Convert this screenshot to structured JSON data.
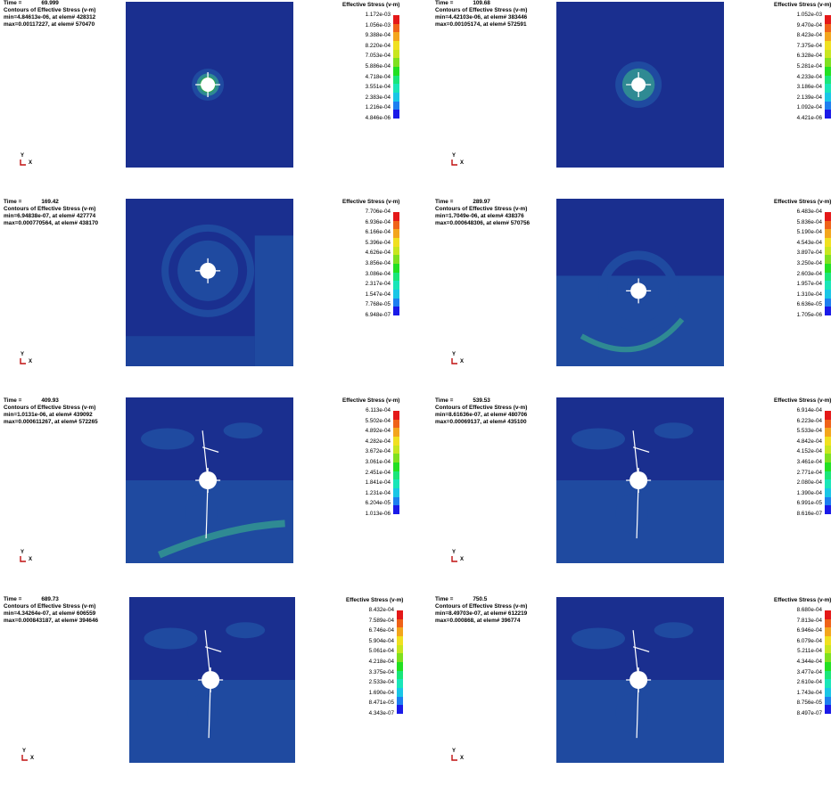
{
  "labels": {
    "time": "Time =",
    "contours": "Contours of Effective Stress (v-m)",
    "legend_title": "Effective Stress (v-m)",
    "axis_y": "Y",
    "axis_x": "X"
  },
  "colors": {
    "background": "#1a2f8f",
    "band_light": "#1f4aa0",
    "band_teal": "#2f8a93",
    "band_cyan": "#45b8c0",
    "hole": "#ffffff",
    "scale": [
      "#1a1ae8",
      "#1d7ff0",
      "#19c6e6",
      "#19e6b8",
      "#19e67a",
      "#22e022",
      "#7fe01f",
      "#c8e61f",
      "#f0e020",
      "#f3a51c",
      "#ef6218",
      "#e41818"
    ]
  },
  "panels": [
    {
      "time": "69.999",
      "min": "min=4.84613e-06, at elem# 428312",
      "max": "max=0.00117227, at elem# 570470",
      "legend": [
        "1.172e-03",
        "1.056e-03",
        "9.388e-04",
        "8.220e-04",
        "7.053e-04",
        "5.886e-04",
        "4.718e-04",
        "3.551e-04",
        "2.383e-04",
        "1.216e-04",
        "4.846e-06"
      ]
    },
    {
      "time": "109.68",
      "min": "min=4.42103e-06, at elem# 383446",
      "max": "max=0.00105174, at elem# 572591",
      "legend": [
        "1.052e-03",
        "9.470e-04",
        "8.423e-04",
        "7.375e-04",
        "6.328e-04",
        "5.281e-04",
        "4.233e-04",
        "3.186e-04",
        "2.139e-04",
        "1.092e-04",
        "4.421e-06"
      ]
    },
    {
      "time": "169.42",
      "min": "min=6.94838e-07, at elem# 427774",
      "max": "max=0.000770564, at elem# 438170",
      "legend": [
        "7.706e-04",
        "6.936e-04",
        "6.166e-04",
        "5.396e-04",
        "4.626e-04",
        "3.856e-04",
        "3.086e-04",
        "2.317e-04",
        "1.547e-04",
        "7.768e-05",
        "6.948e-07"
      ]
    },
    {
      "time": "289.97",
      "min": "min=1.7049e-06, at elem# 438376",
      "max": "max=0.000648306, at elem# 570756",
      "legend": [
        "6.483e-04",
        "5.836e-04",
        "5.190e-04",
        "4.543e-04",
        "3.897e-04",
        "3.250e-04",
        "2.603e-04",
        "1.957e-04",
        "1.310e-04",
        "6.636e-05",
        "1.705e-06"
      ]
    },
    {
      "time": "409.93",
      "min": "min=1.0131e-06, at elem# 439092",
      "max": "max=0.000611267, at elem# 572265",
      "legend": [
        "6.113e-04",
        "5.502e-04",
        "4.892e-04",
        "4.282e-04",
        "3.672e-04",
        "3.061e-04",
        "2.451e-04",
        "1.841e-04",
        "1.231e-04",
        "6.204e-05",
        "1.013e-06"
      ]
    },
    {
      "time": "539.53",
      "min": "min=8.61636e-07, at elem# 480706",
      "max": "max=0.00069137, at elem# 435100",
      "legend": [
        "6.914e-04",
        "6.223e-04",
        "5.533e-04",
        "4.842e-04",
        "4.152e-04",
        "3.461e-04",
        "2.771e-04",
        "2.080e-04",
        "1.390e-04",
        "6.991e-05",
        "8.616e-07"
      ]
    },
    {
      "time": "689.73",
      "min": "min=4.34264e-07, at elem# 606559",
      "max": "max=0.000843187, at elem# 394646",
      "legend": [
        "8.432e-04",
        "7.589e-04",
        "6.746e-04",
        "5.904e-04",
        "5.061e-04",
        "4.218e-04",
        "3.375e-04",
        "2.533e-04",
        "1.690e-04",
        "8.471e-05",
        "4.343e-07"
      ]
    },
    {
      "time": "750.5",
      "min": "min=8.49703e-07, at elem# 612219",
      "max": "max=0.000868, at elem# 396774",
      "legend": [
        "8.680e-04",
        "7.813e-04",
        "6.946e-04",
        "6.079e-04",
        "5.211e-04",
        "4.344e-04",
        "3.477e-04",
        "2.610e-04",
        "1.743e-04",
        "8.756e-05",
        "8.497e-07"
      ]
    }
  ]
}
